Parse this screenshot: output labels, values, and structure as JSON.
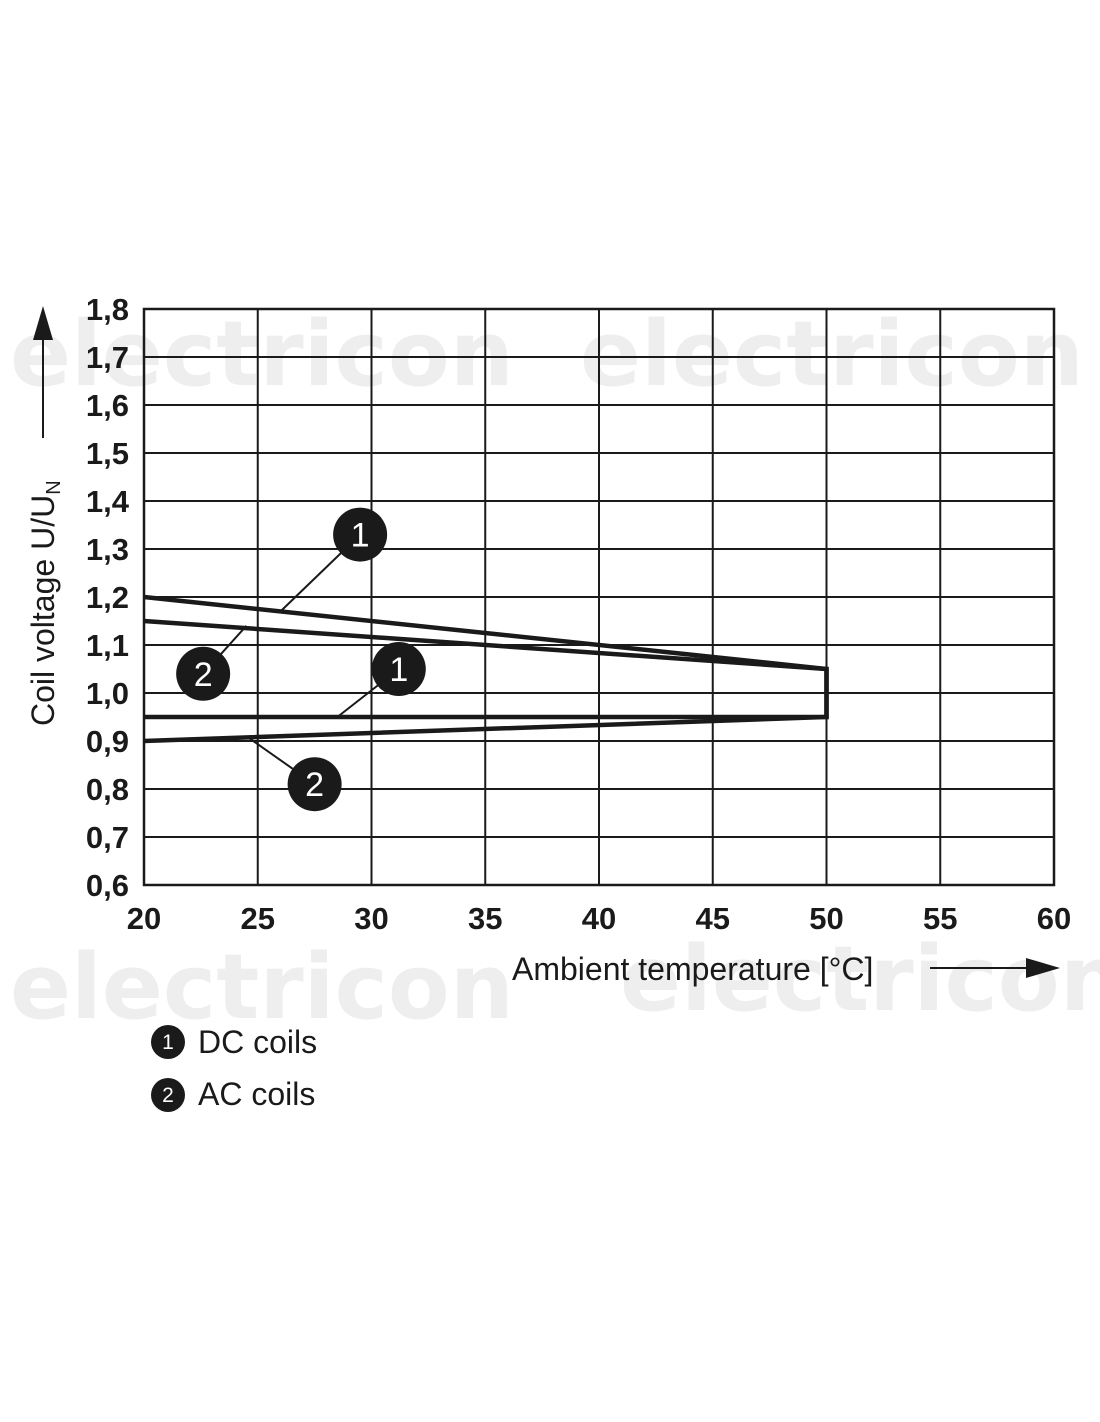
{
  "watermark": {
    "text": "electricon"
  },
  "chart_data": {
    "type": "line",
    "xlabel": "Ambient temperature [°C]",
    "ylabel_main": "Coil voltage U/U",
    "ylabel_subscript": "N",
    "x_ticks": [
      "20",
      "25",
      "30",
      "35",
      "40",
      "45",
      "50",
      "55",
      "60"
    ],
    "y_ticks": [
      "0,6",
      "0,7",
      "0,8",
      "0,9",
      "1,0",
      "1,1",
      "1,2",
      "1,3",
      "1,4",
      "1,5",
      "1,6",
      "1,7",
      "1,8"
    ],
    "xlim": [
      20,
      60
    ],
    "ylim": [
      0.6,
      1.8
    ],
    "grid": true,
    "series": [
      {
        "name": "DC coils",
        "marker": "1",
        "x": [
          20,
          50,
          50,
          20
        ],
        "y": [
          1.2,
          1.05,
          0.95,
          0.95
        ]
      },
      {
        "name": "AC coils",
        "marker": "2",
        "x": [
          20,
          50,
          50,
          20
        ],
        "y": [
          1.15,
          1.05,
          0.95,
          0.9
        ]
      }
    ],
    "callouts": [
      {
        "label": "1",
        "series": 0,
        "at_x": 26,
        "at_y": 1.17,
        "badge_x": 29.5,
        "badge_y": 1.33
      },
      {
        "label": "2",
        "series": 1,
        "at_x": 24.5,
        "at_y": 1.14,
        "badge_x": 22.6,
        "badge_y": 1.04
      },
      {
        "label": "1",
        "series": 0,
        "at_x": 28.5,
        "at_y": 0.95,
        "badge_x": 31.2,
        "badge_y": 1.05
      },
      {
        "label": "2",
        "series": 1,
        "at_x": 24.5,
        "at_y": 0.91,
        "badge_x": 27.5,
        "badge_y": 0.81
      }
    ],
    "legend": [
      {
        "marker": "1",
        "label": "DC coils"
      },
      {
        "marker": "2",
        "label": "AC coils"
      }
    ]
  }
}
